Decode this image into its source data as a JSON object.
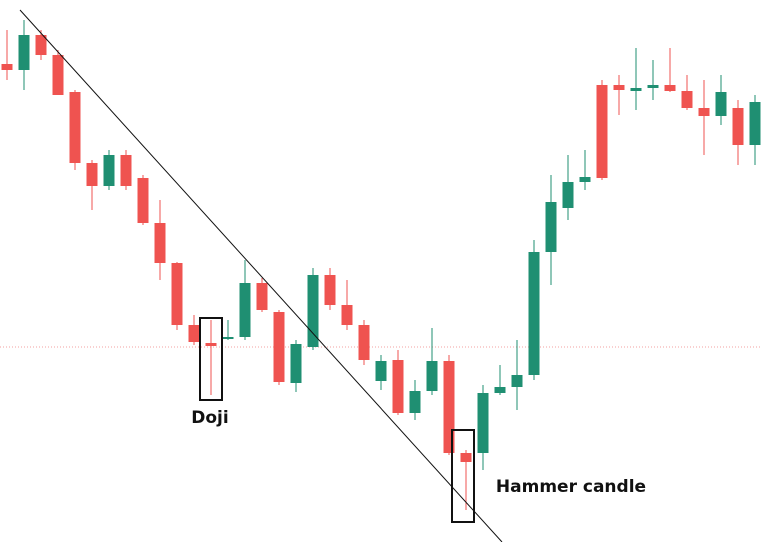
{
  "chart_data": {
    "type": "candlestick",
    "up_color": "#1f8f72",
    "down_color": "#ef5350",
    "ylim": [
      0,
      542
    ],
    "annotations": [
      "Doji",
      "Hammer candle"
    ],
    "series": {
      "open": [
        478,
        472,
        507,
        487,
        450,
        379,
        356,
        387,
        364,
        319,
        279,
        217,
        199,
        203,
        205,
        259,
        230,
        159,
        195,
        267,
        237,
        217,
        161,
        182,
        129,
        151,
        181,
        89,
        89,
        149,
        155,
        167,
        290,
        334,
        360,
        457,
        457,
        451,
        454,
        457,
        451,
        434,
        426,
        434,
        397
      ],
      "high": [
        512,
        522,
        512,
        492,
        452,
        382,
        392,
        392,
        367,
        342,
        280,
        227,
        222,
        222,
        282,
        264,
        232,
        202,
        274,
        274,
        262,
        222,
        187,
        192,
        162,
        214,
        187,
        92,
        157,
        177,
        202,
        302,
        367,
        387,
        392,
        462,
        467,
        494,
        482,
        494,
        467,
        462,
        467,
        442,
        447
      ],
      "low": [
        462,
        452,
        482,
        447,
        372,
        332,
        352,
        352,
        317,
        262,
        212,
        197,
        147,
        202,
        202,
        230,
        157,
        150,
        192,
        232,
        212,
        177,
        152,
        127,
        122,
        147,
        87,
        32,
        72,
        147,
        132,
        162,
        257,
        322,
        352,
        362,
        427,
        432,
        442,
        450,
        432,
        387,
        417,
        377,
        377
      ],
      "close": [
        472,
        507,
        487,
        447,
        379,
        356,
        387,
        356,
        319,
        279,
        217,
        200,
        196,
        205,
        259,
        232,
        160,
        198,
        267,
        237,
        217,
        182,
        181,
        129,
        151,
        181,
        89,
        80,
        149,
        155,
        167,
        290,
        340,
        360,
        365,
        364,
        452,
        454,
        457,
        451,
        434,
        426,
        450,
        397,
        440
      ]
    }
  }
}
